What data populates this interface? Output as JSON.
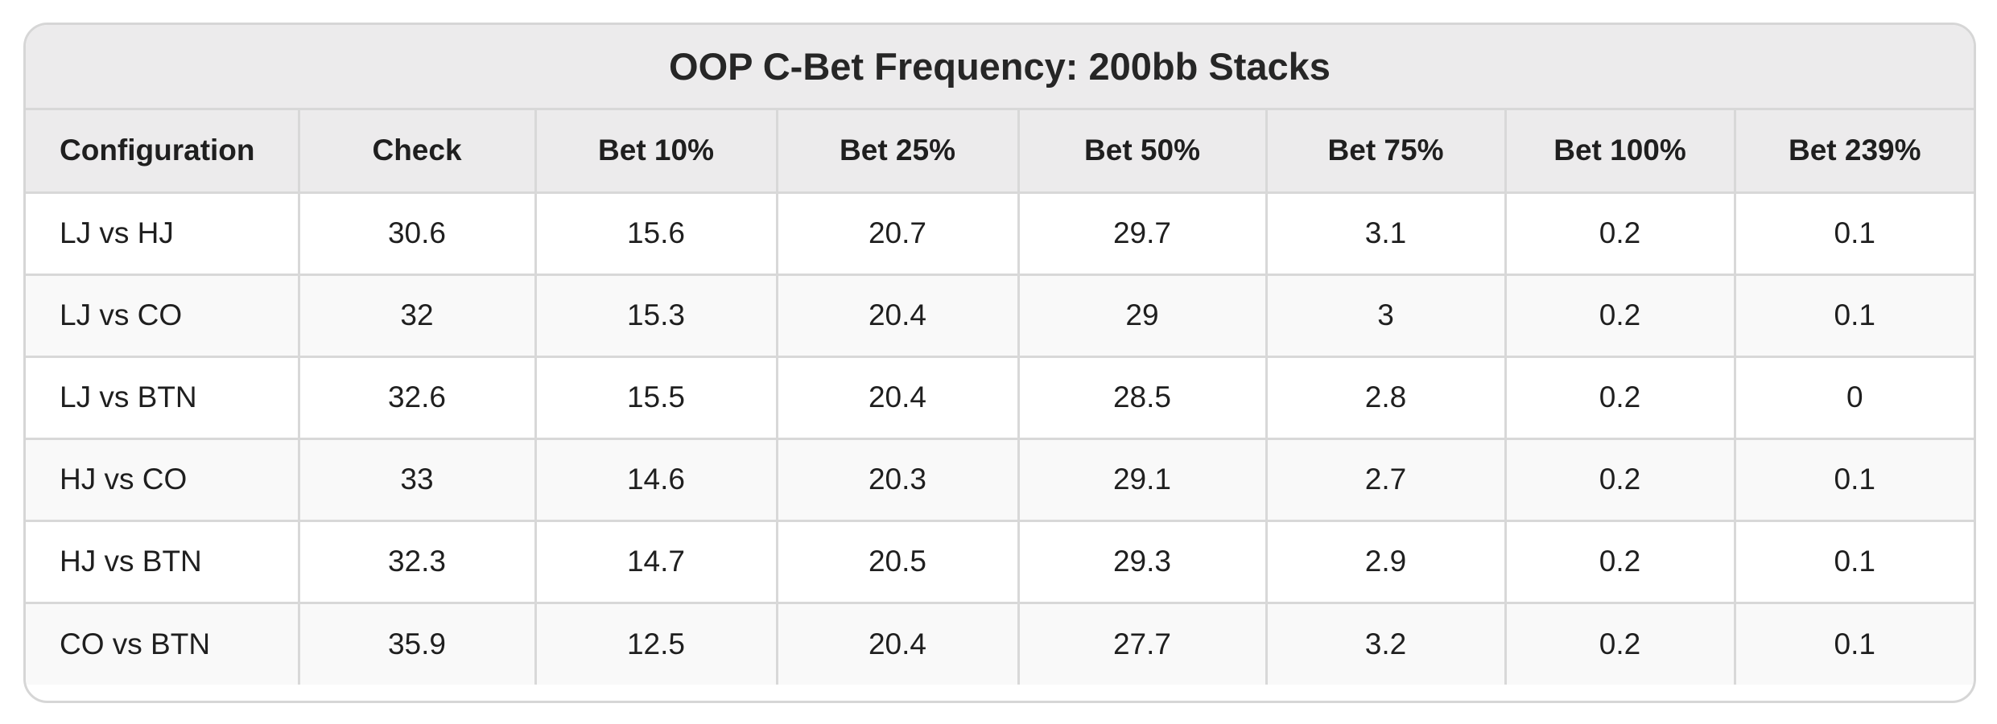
{
  "chart_data": {
    "type": "table",
    "title": "OOP C-Bet Frequency: 200bb Stacks",
    "columns": [
      "Configuration",
      "Check",
      "Bet 10%",
      "Bet 25%",
      "Bet 50%",
      "Bet 75%",
      "Bet 100%",
      "Bet 239%"
    ],
    "rows": [
      [
        "LJ vs HJ",
        "30.6",
        "15.6",
        "20.7",
        "29.7",
        "3.1",
        "0.2",
        "0.1"
      ],
      [
        "LJ vs CO",
        "32",
        "15.3",
        "20.4",
        "29",
        "3",
        "0.2",
        "0.1"
      ],
      [
        "LJ vs BTN",
        "32.6",
        "15.5",
        "20.4",
        "28.5",
        "2.8",
        "0.2",
        "0"
      ],
      [
        "HJ vs CO",
        "33",
        "14.6",
        "20.3",
        "29.1",
        "2.7",
        "0.2",
        "0.1"
      ],
      [
        "HJ vs BTN",
        "32.3",
        "14.7",
        "20.5",
        "29.3",
        "2.9",
        "0.2",
        "0.1"
      ],
      [
        "CO vs BTN",
        "35.9",
        "12.5",
        "20.4",
        "27.7",
        "3.2",
        "0.2",
        "0.1"
      ]
    ]
  },
  "colors": {
    "header_bg": "#ecebec",
    "row_alt_bg": "#f9f9f9",
    "border": "#d8d8d8",
    "text": "#1f1f1f"
  }
}
